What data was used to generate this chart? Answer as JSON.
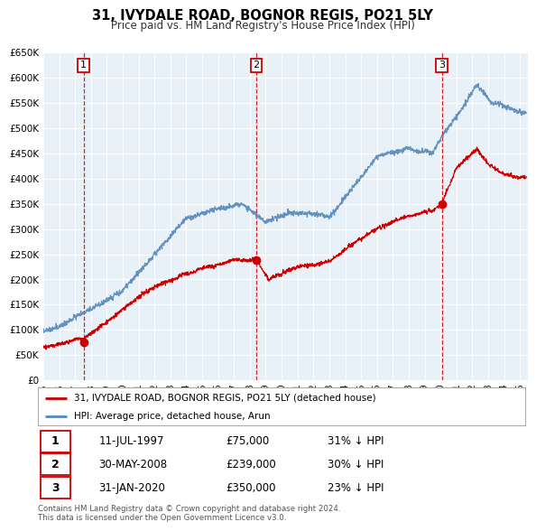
{
  "title": "31, IVYDALE ROAD, BOGNOR REGIS, PO21 5LY",
  "subtitle": "Price paid vs. HM Land Registry's House Price Index (HPI)",
  "fig_bg_color": "#ffffff",
  "plot_bg_color": "#e8f0f8",
  "y_min": 0,
  "y_max": 650000,
  "y_ticks": [
    0,
    50000,
    100000,
    150000,
    200000,
    250000,
    300000,
    350000,
    400000,
    450000,
    500000,
    550000,
    600000,
    650000
  ],
  "y_tick_labels": [
    "£0",
    "£50K",
    "£100K",
    "£150K",
    "£200K",
    "£250K",
    "£300K",
    "£350K",
    "£400K",
    "£450K",
    "£500K",
    "£550K",
    "£600K",
    "£650K"
  ],
  "x_min": 1995.0,
  "x_max": 2025.5,
  "sale_dates": [
    1997.53,
    2008.41,
    2020.08
  ],
  "sale_prices": [
    75000,
    239000,
    350000
  ],
  "sale_labels": [
    "1",
    "2",
    "3"
  ],
  "sale_color": "#cc0000",
  "hpi_line_color": "#5588bb",
  "legend_entries": [
    "31, IVYDALE ROAD, BOGNOR REGIS, PO21 5LY (detached house)",
    "HPI: Average price, detached house, Arun"
  ],
  "table_rows": [
    [
      "1",
      "11-JUL-1997",
      "£75,000",
      "31% ↓ HPI"
    ],
    [
      "2",
      "30-MAY-2008",
      "£239,000",
      "30% ↓ HPI"
    ],
    [
      "3",
      "31-JAN-2020",
      "£350,000",
      "23% ↓ HPI"
    ]
  ],
  "footer": "Contains HM Land Registry data © Crown copyright and database right 2024.\nThis data is licensed under the Open Government Licence v3.0.",
  "x_tick_years": [
    1995,
    1996,
    1997,
    1998,
    1999,
    2000,
    2001,
    2002,
    2003,
    2004,
    2005,
    2006,
    2007,
    2008,
    2009,
    2010,
    2011,
    2012,
    2013,
    2014,
    2015,
    2016,
    2017,
    2018,
    2019,
    2020,
    2021,
    2022,
    2023,
    2024,
    2025
  ]
}
